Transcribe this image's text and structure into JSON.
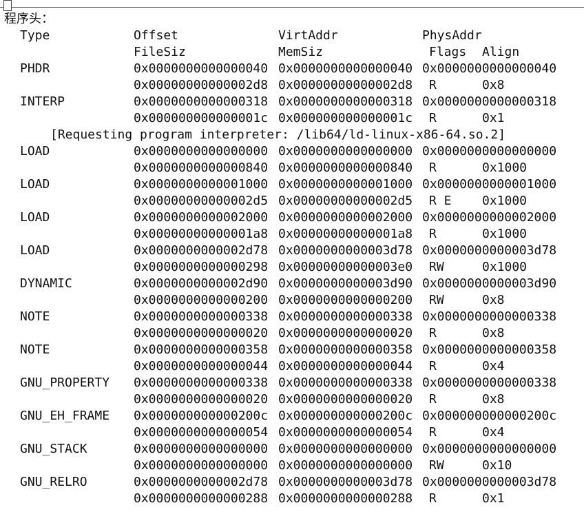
{
  "heading": "程序头：",
  "header": {
    "type": "Type",
    "offset": "Offset",
    "virtaddr": "VirtAddr",
    "physaddr": "PhysAddr",
    "filesiz": "FileSiz",
    "memsiz": "MemSiz",
    "flags": "Flags",
    "align": "Align"
  },
  "segments": [
    {
      "type": "PHDR",
      "offset": "0x0000000000000040",
      "virtaddr": "0x0000000000000040",
      "physaddr": "0x0000000000000040",
      "filesiz": "0x00000000000002d8",
      "memsiz": "0x00000000000002d8",
      "flags": "R",
      "align": "0x8"
    },
    {
      "type": "INTERP",
      "offset": "0x0000000000000318",
      "virtaddr": "0x0000000000000318",
      "physaddr": "0x0000000000000318",
      "filesiz": "0x000000000000001c",
      "memsiz": "0x000000000000001c",
      "flags": "R",
      "align": "0x1"
    },
    {
      "type": "LOAD",
      "offset": "0x0000000000000000",
      "virtaddr": "0x0000000000000000",
      "physaddr": "0x0000000000000000",
      "filesiz": "0x0000000000000840",
      "memsiz": "0x0000000000000840",
      "flags": "R",
      "align": "0x1000"
    },
    {
      "type": "LOAD",
      "offset": "0x0000000000001000",
      "virtaddr": "0x0000000000001000",
      "physaddr": "0x0000000000001000",
      "filesiz": "0x00000000000002d5",
      "memsiz": "0x00000000000002d5",
      "flags": "R E",
      "align": "0x1000"
    },
    {
      "type": "LOAD",
      "offset": "0x0000000000002000",
      "virtaddr": "0x0000000000002000",
      "physaddr": "0x0000000000002000",
      "filesiz": "0x00000000000001a8",
      "memsiz": "0x00000000000001a8",
      "flags": "R",
      "align": "0x1000"
    },
    {
      "type": "LOAD",
      "offset": "0x0000000000002d78",
      "virtaddr": "0x0000000000003d78",
      "physaddr": "0x0000000000003d78",
      "filesiz": "0x0000000000000298",
      "memsiz": "0x00000000000003e0",
      "flags": "RW",
      "align": "0x1000"
    },
    {
      "type": "DYNAMIC",
      "offset": "0x0000000000002d90",
      "virtaddr": "0x0000000000003d90",
      "physaddr": "0x0000000000003d90",
      "filesiz": "0x0000000000000200",
      "memsiz": "0x0000000000000200",
      "flags": "RW",
      "align": "0x8"
    },
    {
      "type": "NOTE",
      "offset": "0x0000000000000338",
      "virtaddr": "0x0000000000000338",
      "physaddr": "0x0000000000000338",
      "filesiz": "0x0000000000000020",
      "memsiz": "0x0000000000000020",
      "flags": "R",
      "align": "0x8"
    },
    {
      "type": "NOTE",
      "offset": "0x0000000000000358",
      "virtaddr": "0x0000000000000358",
      "physaddr": "0x0000000000000358",
      "filesiz": "0x0000000000000044",
      "memsiz": "0x0000000000000044",
      "flags": "R",
      "align": "0x4"
    },
    {
      "type": "GNU_PROPERTY",
      "offset": "0x0000000000000338",
      "virtaddr": "0x0000000000000338",
      "physaddr": "0x0000000000000338",
      "filesiz": "0x0000000000000020",
      "memsiz": "0x0000000000000020",
      "flags": "R",
      "align": "0x8"
    },
    {
      "type": "GNU_EH_FRAME",
      "offset": "0x000000000000200c",
      "virtaddr": "0x000000000000200c",
      "physaddr": "0x000000000000200c",
      "filesiz": "0x0000000000000054",
      "memsiz": "0x0000000000000054",
      "flags": "R",
      "align": "0x4"
    },
    {
      "type": "GNU_STACK",
      "offset": "0x0000000000000000",
      "virtaddr": "0x0000000000000000",
      "physaddr": "0x0000000000000000",
      "filesiz": "0x0000000000000000",
      "memsiz": "0x0000000000000000",
      "flags": "RW",
      "align": "0x10"
    },
    {
      "type": "GNU_RELRO",
      "offset": "0x0000000000002d78",
      "virtaddr": "0x0000000000003d78",
      "physaddr": "0x0000000000003d78",
      "filesiz": "0x0000000000000288",
      "memsiz": "0x0000000000000288",
      "flags": "R",
      "align": "0x1"
    }
  ],
  "interp_note": "[Requesting program interpreter: /lib64/ld-linux-x86-64.so.2]"
}
